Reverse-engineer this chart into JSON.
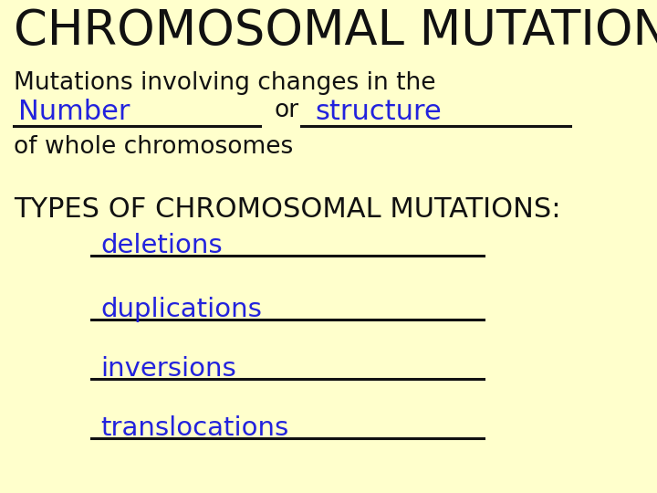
{
  "bg_color": "#ffffcc",
  "title": "CHROMOSOMAL MUTATIONS",
  "title_color": "#111111",
  "title_fontsize": 38,
  "line1": "Mutations involving changes in the",
  "line1_color": "#111111",
  "line1_fontsize": 19,
  "word1": "Number",
  "word2": "structure",
  "word_color": "#2222dd",
  "word_fontsize": 22,
  "or_text": "or",
  "of_line": "of whole chromosomes",
  "of_color": "#111111",
  "of_fontsize": 19,
  "types_line": "TYPES OF CHROMOSOMAL MUTATIONS:",
  "types_color": "#111111",
  "types_fontsize": 22,
  "blank_items": [
    "deletions",
    "duplications",
    "inversions",
    "translocations"
  ],
  "blank_color": "#2222dd",
  "blank_fontsize": 21,
  "underline_color": "#111111",
  "underline_lw": 2.2,
  "font": "Comic Sans MS"
}
